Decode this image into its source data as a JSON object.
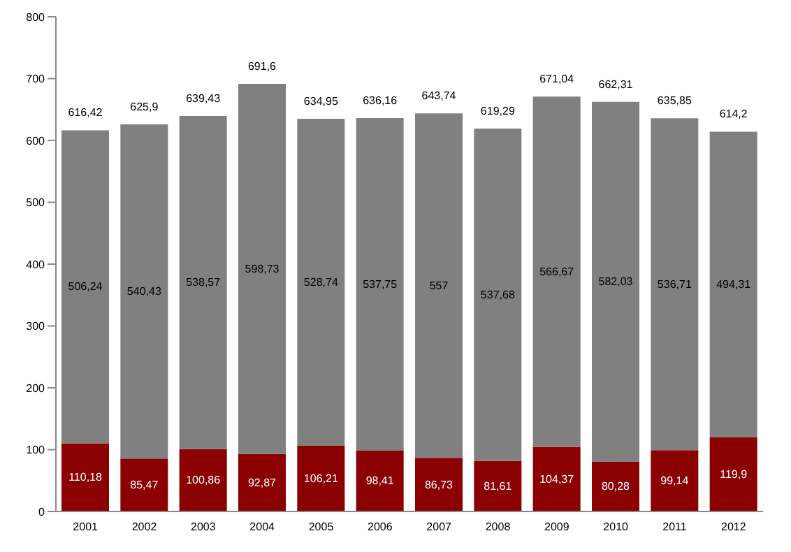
{
  "chart_data": {
    "type": "bar",
    "stacked": true,
    "categories": [
      "2001",
      "2002",
      "2003",
      "2004",
      "2005",
      "2006",
      "2007",
      "2008",
      "2009",
      "2010",
      "2011",
      "2012"
    ],
    "series": [
      {
        "color": "#8b0000",
        "values": [
          110.18,
          85.47,
          100.86,
          92.87,
          106.21,
          98.41,
          86.73,
          81.61,
          104.37,
          80.28,
          99.14,
          119.9
        ],
        "value_labels": [
          "110,18",
          "85,47",
          "100,86",
          "92,87",
          "106,21",
          "98,41",
          "86,73",
          "81,61",
          "104,37",
          "80,28",
          "99,14",
          "119,9"
        ]
      },
      {
        "color": "#808080",
        "values": [
          506.24,
          540.43,
          538.57,
          598.73,
          528.74,
          537.75,
          557,
          537.68,
          566.67,
          582.03,
          536.71,
          494.31
        ],
        "value_labels": [
          "506,24",
          "540,43",
          "538,57",
          "598,73",
          "528,74",
          "537,75",
          "557",
          "537,68",
          "566,67",
          "582,03",
          "536,71",
          "494,31"
        ]
      }
    ],
    "totals": [
      "616,42",
      "625,9",
      "639,43",
      "691,6",
      "634,95",
      "636,16",
      "643,74",
      "619,29",
      "671,04",
      "662,31",
      "635,85",
      "614,2"
    ],
    "ylim": [
      0,
      800
    ],
    "yticks": [
      0,
      100,
      200,
      300,
      400,
      500,
      600,
      700,
      800
    ],
    "grid": false,
    "legend": false
  }
}
